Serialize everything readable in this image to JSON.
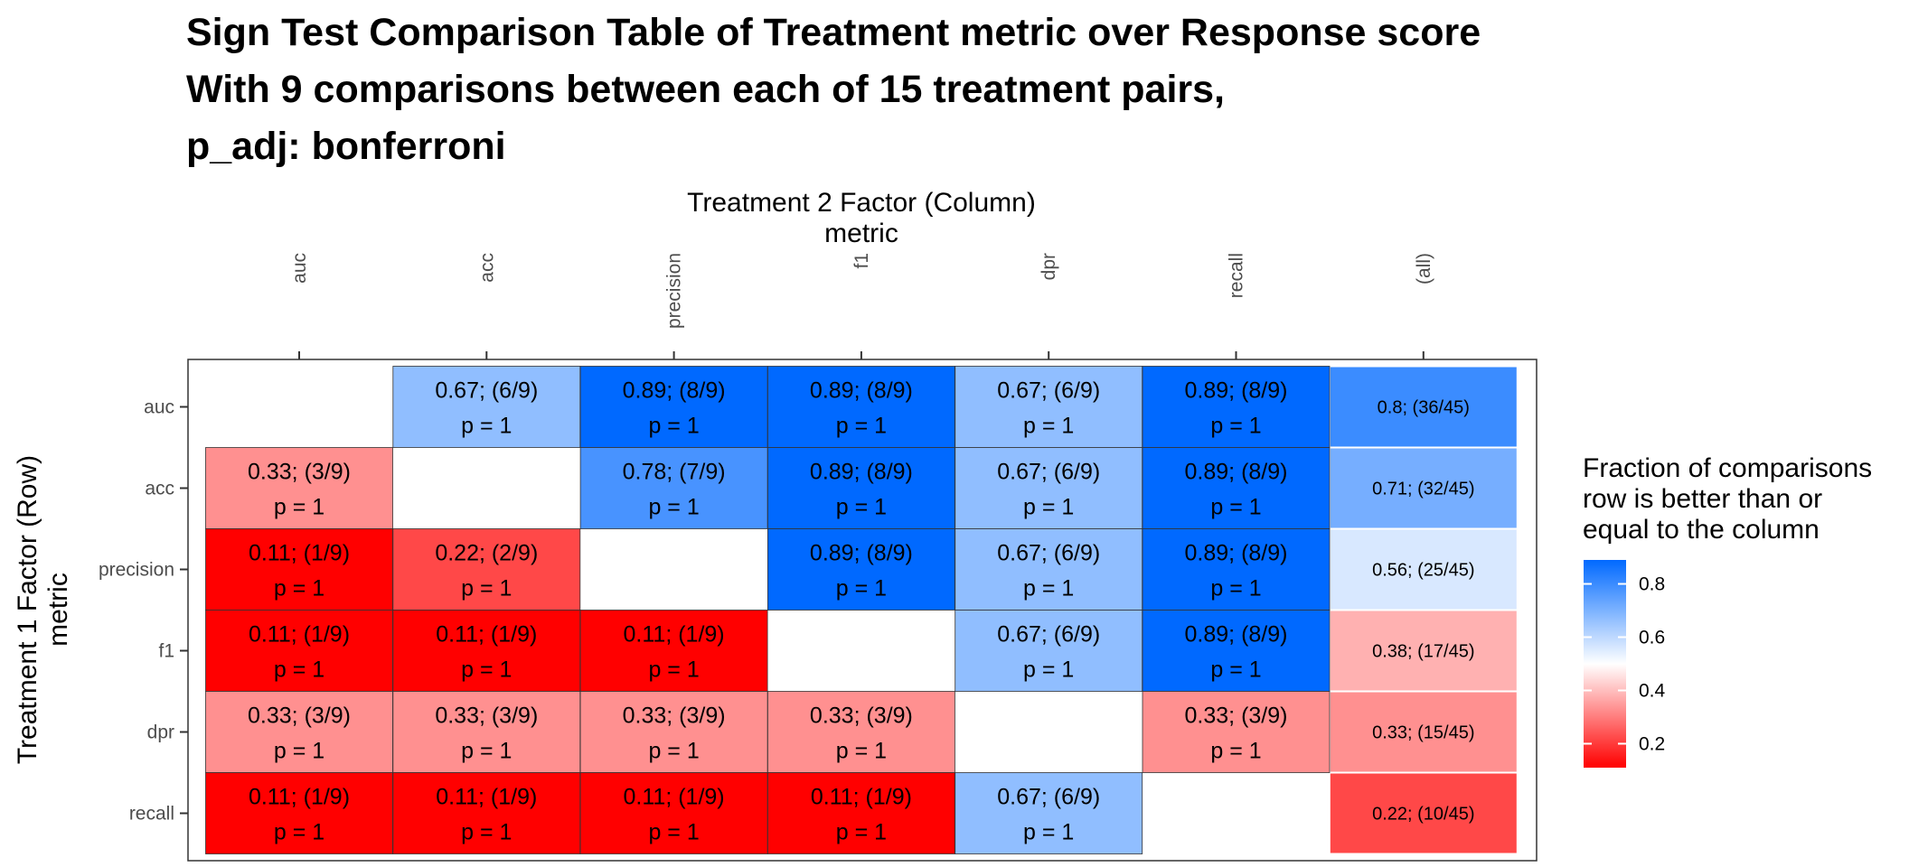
{
  "chart_data": {
    "type": "heatmap",
    "title": [
      "Sign Test Comparison Table of Treatment metric over Response score",
      "With 9 comparisons between each of 15 treatment pairs,",
      "p_adj: bonferroni"
    ],
    "xlabel": [
      "Treatment 2 Factor (Column)",
      "metric"
    ],
    "ylabel": [
      "Treatment 1 Factor (Row)",
      "metric"
    ],
    "columns": [
      "auc",
      "acc",
      "precision",
      "f1",
      "dpr",
      "recall",
      "(all)"
    ],
    "rows": [
      "auc",
      "acc",
      "precision",
      "f1",
      "dpr",
      "recall"
    ],
    "cells": [
      [
        null,
        {
          "value": 0.67,
          "label": "0.67; (6/9)",
          "p": "p = 1"
        },
        {
          "value": 0.89,
          "label": "0.89; (8/9)",
          "p": "p = 1"
        },
        {
          "value": 0.89,
          "label": "0.89; (8/9)",
          "p": "p = 1"
        },
        {
          "value": 0.67,
          "label": "0.67; (6/9)",
          "p": "p = 1"
        },
        {
          "value": 0.89,
          "label": "0.89; (8/9)",
          "p": "p = 1"
        },
        {
          "value": 0.8,
          "label": "0.8; (36/45)"
        }
      ],
      [
        {
          "value": 0.33,
          "label": "0.33; (3/9)",
          "p": "p = 1"
        },
        null,
        {
          "value": 0.78,
          "label": "0.78; (7/9)",
          "p": "p = 1"
        },
        {
          "value": 0.89,
          "label": "0.89; (8/9)",
          "p": "p = 1"
        },
        {
          "value": 0.67,
          "label": "0.67; (6/9)",
          "p": "p = 1"
        },
        {
          "value": 0.89,
          "label": "0.89; (8/9)",
          "p": "p = 1"
        },
        {
          "value": 0.71,
          "label": "0.71; (32/45)"
        }
      ],
      [
        {
          "value": 0.11,
          "label": "0.11; (1/9)",
          "p": "p = 1"
        },
        {
          "value": 0.22,
          "label": "0.22; (2/9)",
          "p": "p = 1"
        },
        null,
        {
          "value": 0.89,
          "label": "0.89; (8/9)",
          "p": "p = 1"
        },
        {
          "value": 0.67,
          "label": "0.67; (6/9)",
          "p": "p = 1"
        },
        {
          "value": 0.89,
          "label": "0.89; (8/9)",
          "p": "p = 1"
        },
        {
          "value": 0.56,
          "label": "0.56; (25/45)"
        }
      ],
      [
        {
          "value": 0.11,
          "label": "0.11; (1/9)",
          "p": "p = 1"
        },
        {
          "value": 0.11,
          "label": "0.11; (1/9)",
          "p": "p = 1"
        },
        {
          "value": 0.11,
          "label": "0.11; (1/9)",
          "p": "p = 1"
        },
        null,
        {
          "value": 0.67,
          "label": "0.67; (6/9)",
          "p": "p = 1"
        },
        {
          "value": 0.89,
          "label": "0.89; (8/9)",
          "p": "p = 1"
        },
        {
          "value": 0.38,
          "label": "0.38; (17/45)"
        }
      ],
      [
        {
          "value": 0.33,
          "label": "0.33; (3/9)",
          "p": "p = 1"
        },
        {
          "value": 0.33,
          "label": "0.33; (3/9)",
          "p": "p = 1"
        },
        {
          "value": 0.33,
          "label": "0.33; (3/9)",
          "p": "p = 1"
        },
        {
          "value": 0.33,
          "label": "0.33; (3/9)",
          "p": "p = 1"
        },
        null,
        {
          "value": 0.33,
          "label": "0.33; (3/9)",
          "p": "p = 1"
        },
        {
          "value": 0.33,
          "label": "0.33; (15/45)"
        }
      ],
      [
        {
          "value": 0.11,
          "label": "0.11; (1/9)",
          "p": "p = 1"
        },
        {
          "value": 0.11,
          "label": "0.11; (1/9)",
          "p": "p = 1"
        },
        {
          "value": 0.11,
          "label": "0.11; (1/9)",
          "p": "p = 1"
        },
        {
          "value": 0.11,
          "label": "0.11; (1/9)",
          "p": "p = 1"
        },
        {
          "value": 0.67,
          "label": "0.67; (6/9)",
          "p": "p = 1"
        },
        null,
        {
          "value": 0.22,
          "label": "0.22; (10/45)"
        }
      ]
    ],
    "legend": {
      "title": [
        "Fraction of comparisons",
        "row is better than or",
        "equal to the column"
      ],
      "ticks": [
        0.2,
        0.4,
        0.6,
        0.8
      ],
      "tick_labels": [
        "0.2",
        "0.4",
        "0.6",
        "0.8"
      ],
      "range": [
        0.11,
        0.89
      ],
      "colors": {
        "low": "#ff0000",
        "mid": "#ffffff",
        "high": "#0069ff"
      },
      "midpoint": 0.5,
      "placement": "right"
    }
  }
}
